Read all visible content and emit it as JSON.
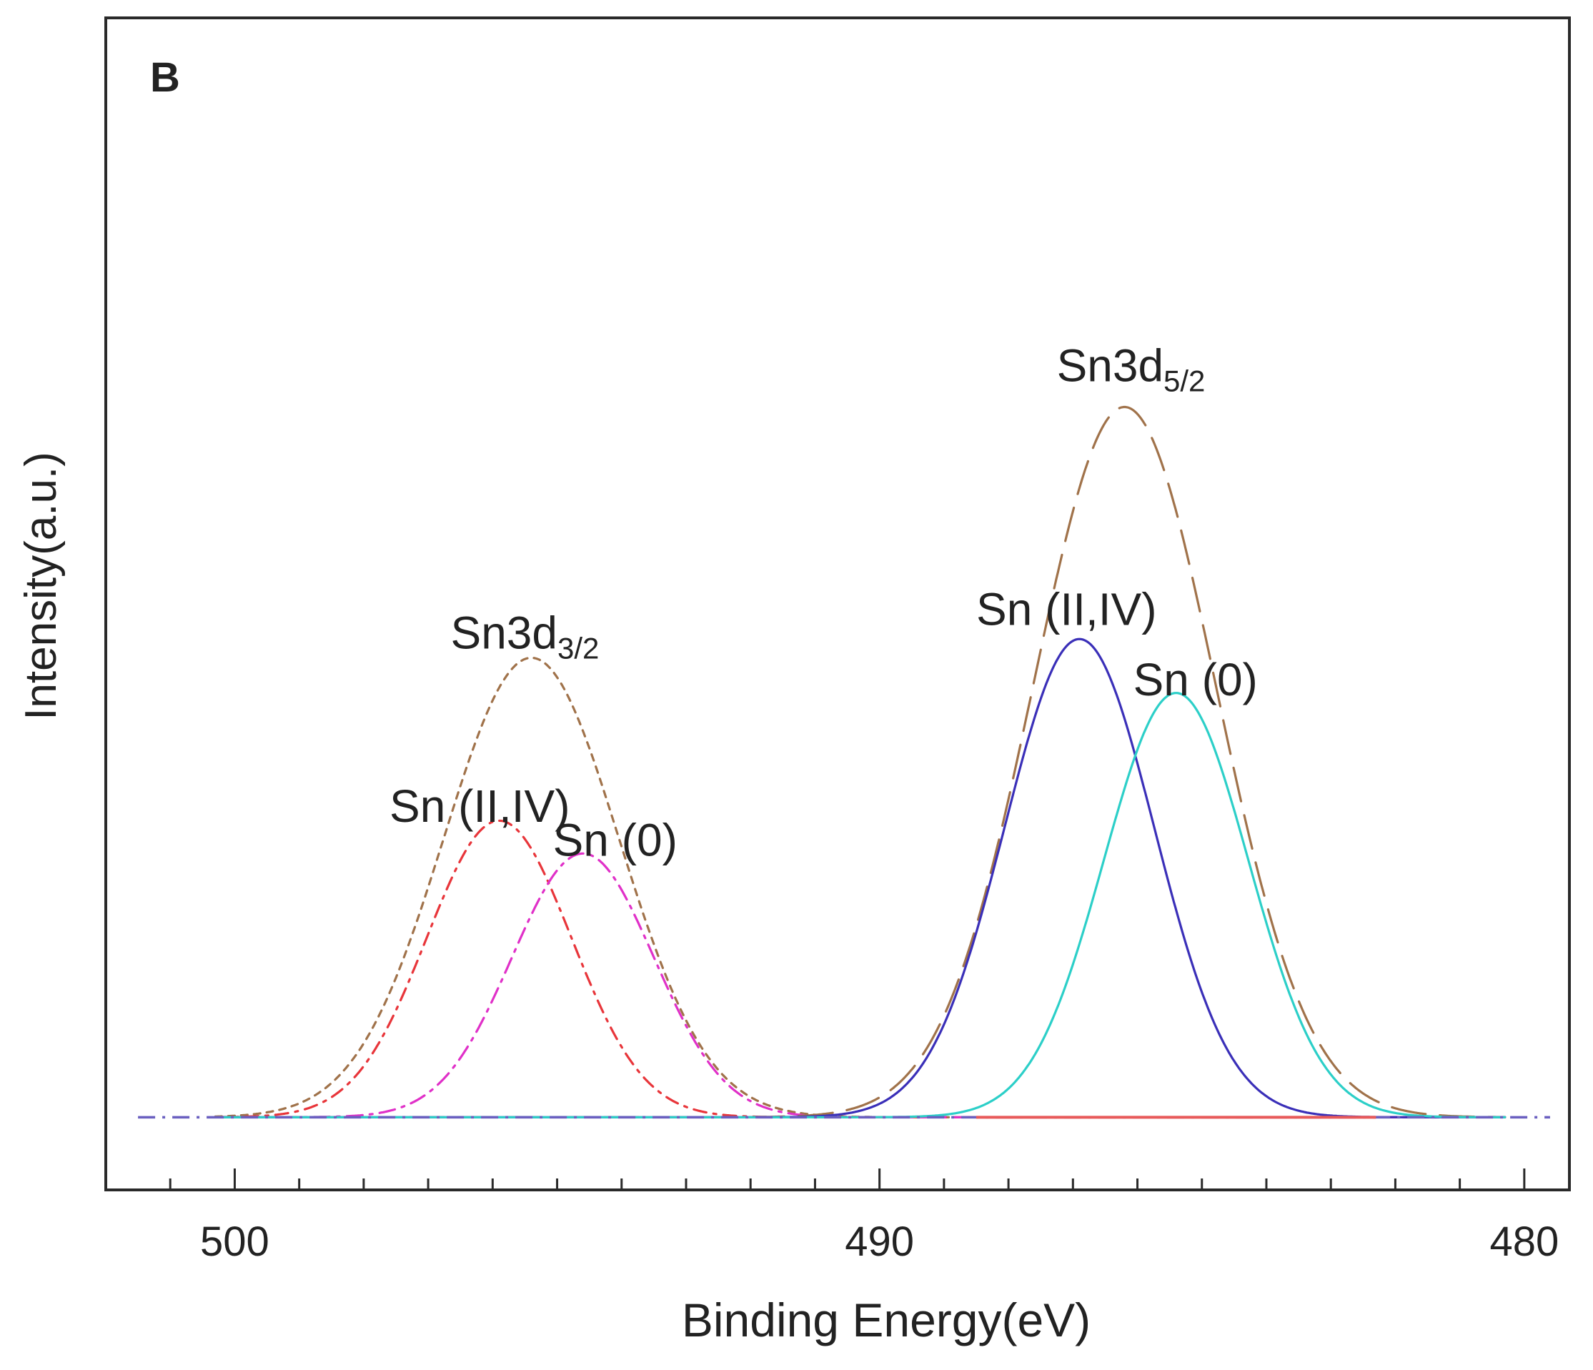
{
  "panel_label": "B",
  "chart_data": {
    "type": "line",
    "title": "",
    "xlabel": "Binding Energy(eV)",
    "ylabel": "Intensity(a.u.)",
    "xlim": [
      502,
      479.3
    ],
    "x_reversed": true,
    "ylim": [
      0,
      1
    ],
    "x_ticks": [
      500,
      490,
      480
    ],
    "baseline": 0.062,
    "grid": false,
    "series": [
      {
        "name": "Sn3d3/2 envelope",
        "center": 495.4,
        "height": 0.392,
        "sigma": 1.36,
        "color": "#a0724a",
        "dash": "9 9"
      },
      {
        "name": "Sn (II,IV) 3d3/2",
        "center": 495.9,
        "height": 0.253,
        "sigma": 1.12,
        "color": "#e8353a",
        "dash": "18 10 4 10"
      },
      {
        "name": "Sn (0) 3d3/2",
        "center": 494.6,
        "height": 0.225,
        "sigma": 1.1,
        "color": "#e030c8",
        "dash": "22 10 4 10"
      },
      {
        "name": "Sn3d5/2 envelope",
        "center": 486.2,
        "height": 0.606,
        "sigma": 1.42,
        "color": "#a0724a",
        "dash": "48 20"
      },
      {
        "name": "Sn (II,IV) 3d5/2",
        "center": 486.9,
        "height": 0.408,
        "sigma": 1.16,
        "color": "#3a2fb8",
        "dash": "none"
      },
      {
        "name": "Sn (0) 3d5/2",
        "center": 485.4,
        "height": 0.362,
        "sigma": 1.12,
        "color": "#2ccfc8",
        "dash": "none"
      }
    ],
    "annotations": [
      {
        "text": "Sn3d",
        "sub": "3/2",
        "x": 495.5,
        "y": 0.462
      },
      {
        "text": "Sn (II,IV)",
        "sub": "",
        "x": 496.2,
        "y": 0.314
      },
      {
        "text": "Sn (0)",
        "sub": "",
        "x": 494.1,
        "y": 0.285
      },
      {
        "text": "Sn3d",
        "sub": "5/2",
        "x": 486.1,
        "y": 0.69
      },
      {
        "text": "Sn (II,IV)",
        "sub": "",
        "x": 487.1,
        "y": 0.482
      },
      {
        "text": "Sn (0)",
        "sub": "",
        "x": 485.1,
        "y": 0.422
      }
    ]
  }
}
